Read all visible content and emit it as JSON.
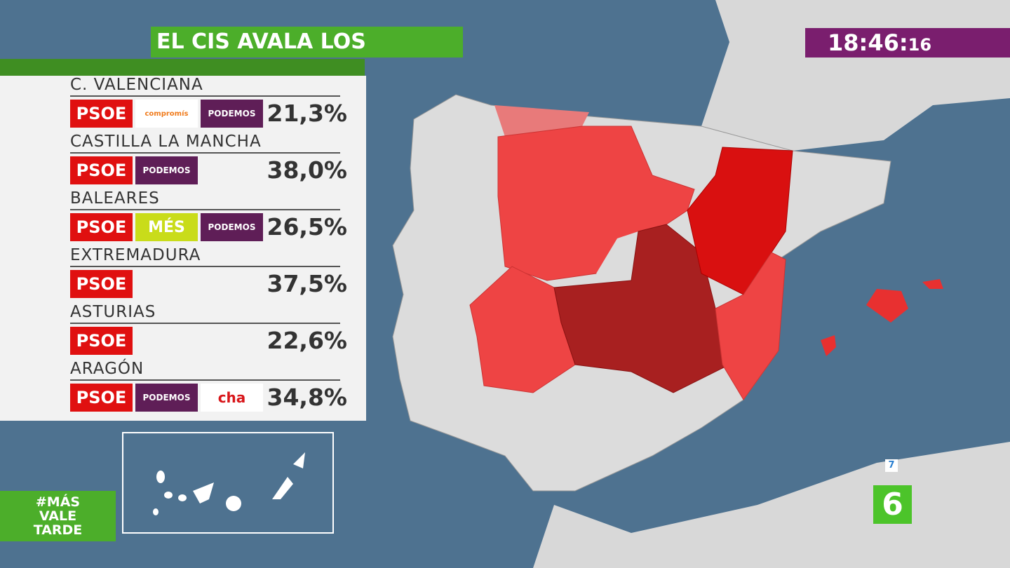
{
  "header": {
    "title": "EL CIS AVALA LOS PACTOS",
    "clock": {
      "time": "18:46:",
      "seconds": "16"
    }
  },
  "regions": [
    {
      "name": "C. VALENCIANA",
      "parties": [
        "PSOE",
        "compromís",
        "PODEMOS"
      ],
      "value": "21,3%"
    },
    {
      "name": "CASTILLA LA MANCHA",
      "parties": [
        "PSOE",
        "PODEMOS"
      ],
      "value": "38,0%"
    },
    {
      "name": "BALEARES",
      "parties": [
        "PSOE",
        "MÉS",
        "PODEMOS"
      ],
      "value": "26,5%"
    },
    {
      "name": "EXTREMADURA",
      "parties": [
        "PSOE"
      ],
      "value": "37,5%"
    },
    {
      "name": "ASTURIAS",
      "parties": [
        "PSOE"
      ],
      "value": "22,6%"
    },
    {
      "name": "ARAGÓN",
      "parties": [
        "PSOE",
        "PODEMOS",
        "cha"
      ],
      "value": "34,8%"
    }
  ],
  "footer": {
    "hashtag": [
      "#MÁS",
      "VALE",
      "TARDE"
    ],
    "channel_number": "7",
    "logo": "6"
  }
}
